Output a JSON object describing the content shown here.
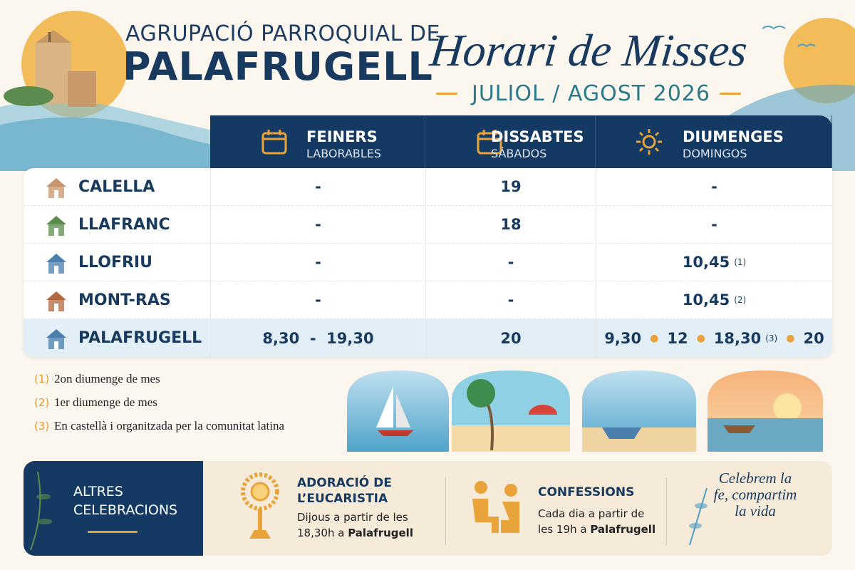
{
  "header": {
    "parish_prefix": "AGRUPACIÓ PARROQUIAL DE",
    "parish_name": "PALAFRUGELL",
    "title": "Horari de Misses",
    "period": "JULIOL / AGOST 2026"
  },
  "table": {
    "columns": [
      {
        "name": "FEINERS",
        "subtitle": "LABORABLES"
      },
      {
        "name": "DISSABTES",
        "subtitle": "SÁBADOS"
      },
      {
        "name": "DIUMENGES",
        "subtitle": "DOMINGOS"
      }
    ],
    "rows": [
      {
        "place": "CALELLA",
        "cells": [
          [
            {
              "text": "-"
            }
          ],
          [
            {
              "text": "19"
            }
          ],
          [
            {
              "text": "-"
            }
          ]
        ]
      },
      {
        "place": "LLAFRANC",
        "cells": [
          [
            {
              "text": "-"
            }
          ],
          [
            {
              "text": "18"
            }
          ],
          [
            {
              "text": "-"
            }
          ]
        ]
      },
      {
        "place": "LLOFRIU",
        "cells": [
          [
            {
              "text": "-"
            }
          ],
          [
            {
              "text": "-"
            }
          ],
          [
            {
              "text": "10,45",
              "note": "(1)"
            }
          ]
        ]
      },
      {
        "place": "MONT-RAS",
        "cells": [
          [
            {
              "text": "-"
            }
          ],
          [
            {
              "text": "-"
            }
          ],
          [
            {
              "text": "10,45",
              "note": "(2)"
            }
          ]
        ]
      },
      {
        "place": "PALAFRUGELL",
        "cells": [
          [
            {
              "text": "8,30  -  19,30"
            }
          ],
          [
            {
              "text": "20"
            }
          ],
          [
            {
              "text": "9,30"
            },
            {
              "text": "12"
            },
            {
              "text": "18,30",
              "note": "(3)"
            },
            {
              "text": "20"
            }
          ]
        ]
      }
    ]
  },
  "notes": [
    {
      "marker": "(1)",
      "text": "2on diumenge de mes"
    },
    {
      "marker": "(2)",
      "text": "1er diumenge de mes"
    },
    {
      "marker": "(3)",
      "text": "En castellà i organitzada per la comunitat latina"
    }
  ],
  "other": {
    "title": "ALTRES CELEBRACIONS",
    "items": [
      {
        "title": "ADORACIÓ DE L’EUCARISTIA",
        "text": "Dijous a partir de les 18,30h a ",
        "place": "Palafrugell"
      },
      {
        "title": "CONFESSIONS",
        "text": "Cada dia a partir de les 19h a ",
        "place": "Palafrugell"
      }
    ],
    "quote": "Celebrem la fe, compartim la vida"
  }
}
